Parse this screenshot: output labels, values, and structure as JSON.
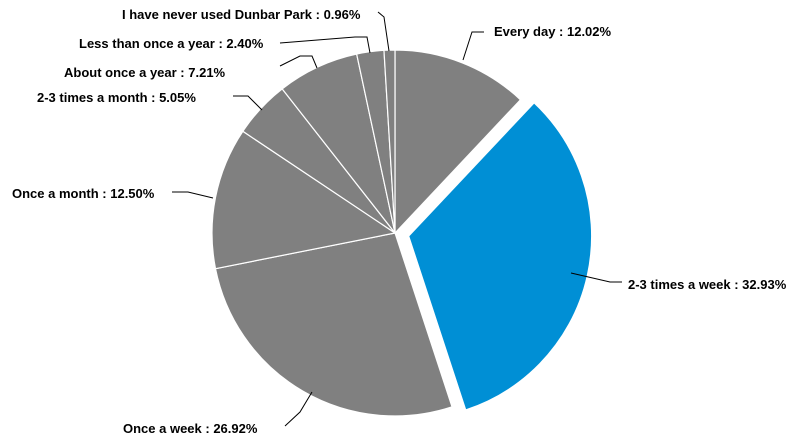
{
  "chart_data": {
    "type": "pie",
    "title": "",
    "slices": [
      {
        "label": "Every day : 12.02%",
        "value": 12.02,
        "color": "#808080",
        "exploded": false
      },
      {
        "label": "2-3 times a week : 32.93%",
        "value": 32.93,
        "color": "#008FD5",
        "exploded": true
      },
      {
        "label": "Once a week : 26.92%",
        "value": 26.92,
        "color": "#808080",
        "exploded": false
      },
      {
        "label": "Once a month : 12.50%",
        "value": 12.5,
        "color": "#808080",
        "exploded": false
      },
      {
        "label": "2-3 times a month  : 5.05%",
        "value": 5.05,
        "color": "#808080",
        "exploded": false
      },
      {
        "label": "About once a year : 7.21%",
        "value": 7.21,
        "color": "#808080",
        "exploded": false
      },
      {
        "label": "Less than once a year : 2.40%",
        "value": 2.4,
        "color": "#808080",
        "exploded": false
      },
      {
        "label": "I have never used Dunbar Park  : 0.96%",
        "value": 0.96,
        "color": "#808080",
        "exploded": false
      }
    ],
    "legend": "none",
    "start_angle": "12 o'clock",
    "direction": "clockwise"
  }
}
